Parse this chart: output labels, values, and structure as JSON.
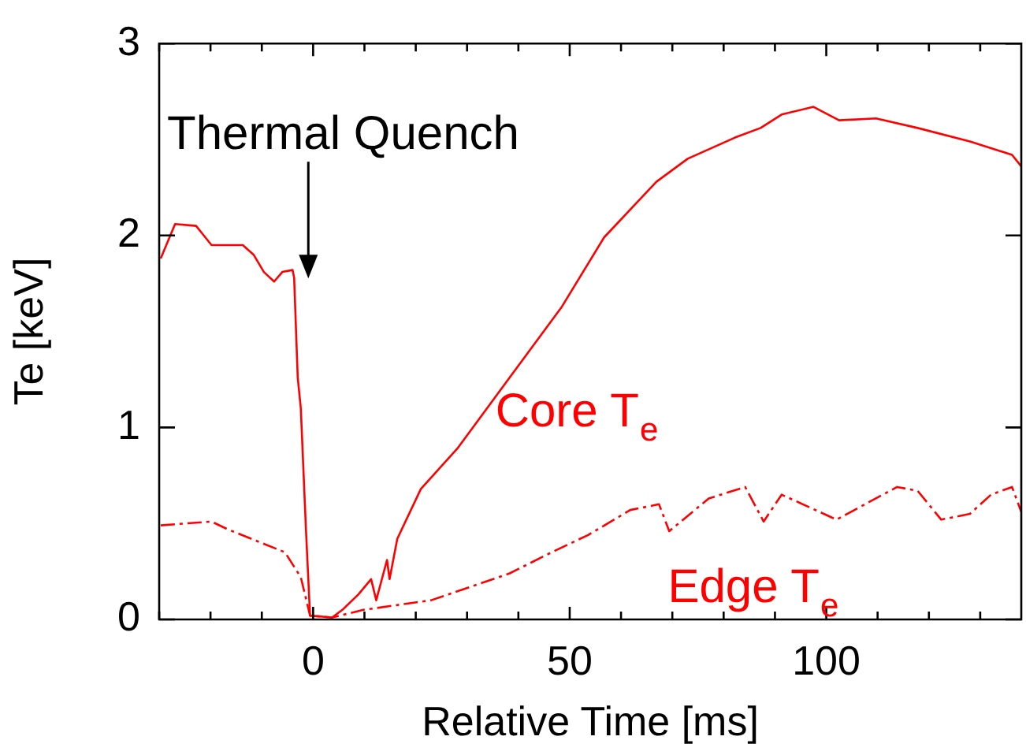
{
  "chart_data": {
    "type": "line",
    "xlabel": "Relative Time [ms]",
    "ylabel": "Te [keV]",
    "xlim": [
      -30,
      138
    ],
    "ylim": [
      0,
      3
    ],
    "xticks": [
      {
        "value": -30,
        "label": null
      },
      {
        "value": -20,
        "label": null
      },
      {
        "value": -10,
        "label": null
      },
      0,
      {
        "value": 10,
        "label": null
      },
      {
        "value": 20,
        "label": null
      },
      {
        "value": 30,
        "label": null
      },
      {
        "value": 40,
        "label": null
      },
      50,
      {
        "value": 60,
        "label": null
      },
      {
        "value": 70,
        "label": null
      },
      {
        "value": 80,
        "label": null
      },
      {
        "value": 90,
        "label": null
      },
      100,
      {
        "value": 110,
        "label": null
      },
      {
        "value": 120,
        "label": null
      },
      {
        "value": 130,
        "label": null
      }
    ],
    "yticks": [
      0,
      1,
      2,
      3
    ],
    "grid": false,
    "legend": false,
    "marker": "none",
    "annotations": [
      "Thermal Quench"
    ],
    "series": [
      {
        "name": "Core T$_{e}$",
        "color": "#ff0000",
        "line_style": "solid",
        "x": [
          -29.7,
          -26.9,
          -22.8,
          -19.8,
          -13.7,
          -11.6,
          -9.6,
          -7.6,
          -6.0,
          -4.0,
          -3.7,
          -3.0,
          -2.4,
          -1.4,
          -0.6,
          3.7,
          5.7,
          8.8,
          11.3,
          12.3,
          14.4,
          14.9,
          16.4,
          21.0,
          28.1,
          38.3,
          48.5,
          56.7,
          66.9,
          73.0,
          82.2,
          87.2,
          91.3,
          97.5,
          102.5,
          109.7,
          117.8,
          128.0,
          136.2,
          138.0
        ],
        "values": [
          1.88,
          2.06,
          2.05,
          1.95,
          1.95,
          1.9,
          1.81,
          1.76,
          1.81,
          1.82,
          1.78,
          1.26,
          1.1,
          0.47,
          0.02,
          0.01,
          0.05,
          0.13,
          0.21,
          0.1,
          0.31,
          0.21,
          0.42,
          0.68,
          0.89,
          1.26,
          1.63,
          1.99,
          2.28,
          2.4,
          2.51,
          2.56,
          2.63,
          2.67,
          2.6,
          2.61,
          2.56,
          2.49,
          2.42,
          2.36
        ]
      },
      {
        "name": "Edge T$_{e}$",
        "color": "#ff0000",
        "line_style": "dashed",
        "x": [
          -29.7,
          -19.8,
          -16.7,
          -5.5,
          -2.4,
          -0.6,
          3.7,
          9.8,
          23.0,
          38.3,
          46.5,
          53.6,
          61.8,
          67.4,
          69.4,
          77.1,
          84.2,
          87.8,
          91.3,
          102.0,
          113.8,
          117.8,
          122.4,
          128.0,
          132.1,
          136.2,
          138.0
        ],
        "values": [
          0.49,
          0.51,
          0.47,
          0.35,
          0.22,
          0.02,
          0.01,
          0.05,
          0.1,
          0.24,
          0.35,
          0.44,
          0.57,
          0.6,
          0.46,
          0.63,
          0.69,
          0.51,
          0.65,
          0.52,
          0.69,
          0.67,
          0.52,
          0.55,
          0.65,
          0.69,
          0.56
        ]
      }
    ]
  }
}
